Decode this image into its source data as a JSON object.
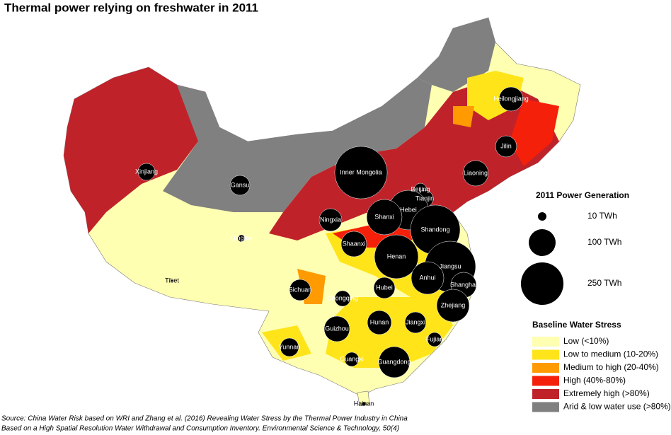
{
  "title": "Thermal power relying on freshwater in 2011",
  "provinces": [
    {
      "name": "Heilongjiang",
      "value": 80
    },
    {
      "name": "Jilin",
      "value": 62
    },
    {
      "name": "Liaoning",
      "value": 90
    },
    {
      "name": "Xinjiang",
      "value": 40
    },
    {
      "name": "Gansu",
      "value": 54
    },
    {
      "name": "Inner Mongolia",
      "value": 380
    },
    {
      "name": "Beijing",
      "value": 22
    },
    {
      "name": "Tianjin",
      "value": 40
    },
    {
      "name": "Hebei",
      "value": 217
    },
    {
      "name": "Shanxi",
      "value": 173
    },
    {
      "name": "Shandong",
      "value": 340
    },
    {
      "name": "Ningxia",
      "value": 71
    },
    {
      "name": "Qinghai",
      "value": 7
    },
    {
      "name": "Shaanxi",
      "value": 90
    },
    {
      "name": "Henan",
      "value": 266
    },
    {
      "name": "Jiangsu",
      "value": 359
    },
    {
      "name": "Anhui",
      "value": 147
    },
    {
      "name": "Shanghai",
      "value": 90
    },
    {
      "name": "Hubei",
      "value": 62
    },
    {
      "name": "Zhejiang",
      "value": 147
    },
    {
      "name": "Tibet",
      "value": 0.5
    },
    {
      "name": "Sichuan",
      "value": 62
    },
    {
      "name": "Chongqing",
      "value": 34
    },
    {
      "name": "Guizhou",
      "value": 90
    },
    {
      "name": "Hunan",
      "value": 80
    },
    {
      "name": "Jiangxi",
      "value": 62
    },
    {
      "name": "Fujian",
      "value": 28
    },
    {
      "name": "Yunnan",
      "value": 47
    },
    {
      "name": "Guangxi",
      "value": 28
    },
    {
      "name": "Guangdong",
      "value": 134
    },
    {
      "name": "Hainan",
      "value": 2.5
    }
  ],
  "size_legend": {
    "title": "2011 Power Generation",
    "sizes": [
      {
        "value": 10,
        "label": "10 TWh"
      },
      {
        "value": 100,
        "label": "100 TWh"
      },
      {
        "value": 250,
        "label": "250 TWh"
      }
    ]
  },
  "stress_legend": {
    "title": "Baseline Water Stress",
    "items": [
      {
        "label": "Low (<10%)",
        "color": "#ffffb2"
      },
      {
        "label": "Low to medium (10-20%)",
        "color": "#ffe419"
      },
      {
        "label": "Medium to high (20-40%)",
        "color": "#ff9a00"
      },
      {
        "label": "High (40%-80%)",
        "color": "#f5200a"
      },
      {
        "label": "Extremely high (>80%)",
        "color": "#c0222a"
      },
      {
        "label": "Arid & low water use (>80%)",
        "color": "#808080"
      }
    ]
  },
  "source": [
    "Source: China Water Risk based on WRI and Zhang et al. (2016) Revealing Water Stress by the Thermal Power Industry in China",
    "Based on a High Spatial Resolution Water Withdrawal and Consumption Inventory. Environmental Science & Technology, 50(4)"
  ]
}
